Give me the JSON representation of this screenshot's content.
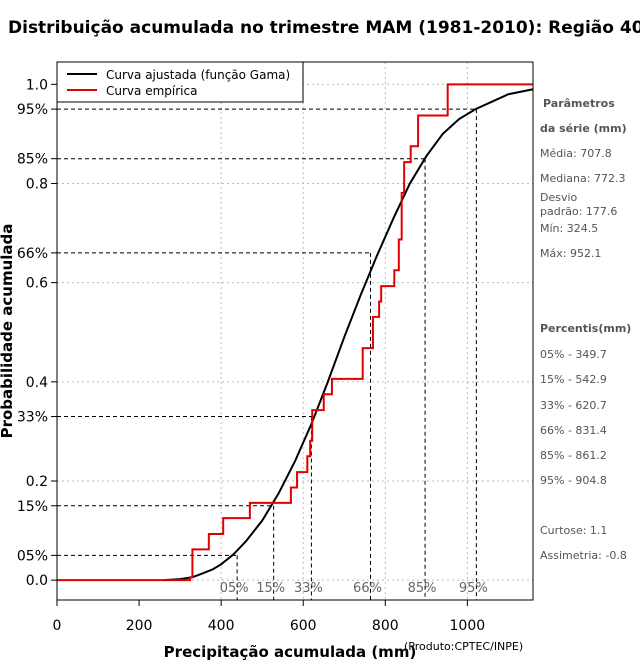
{
  "title": "Distribuição acumulada no trimestre MAM (1981-2010): Região 40",
  "credit": "(Produto:CPTEC/INPE)",
  "chart_data": {
    "type": "line",
    "xlabel": "Precipitação acumulada (mm)",
    "ylabel": "Probabilidade acumulada",
    "xlim": [
      0,
      1160
    ],
    "ylim": [
      -0.04,
      1.045
    ],
    "x_ticks": [
      "0",
      "200",
      "400",
      "600",
      "800",
      "1000"
    ],
    "x_tick_values": [
      0,
      200,
      400,
      600,
      800,
      1000
    ],
    "y_ticks": [
      {
        "value": 1.0,
        "label": "1.0"
      },
      {
        "value": 0.95,
        "label": "95%"
      },
      {
        "value": 0.85,
        "label": "85%"
      },
      {
        "value": 0.8,
        "label": "0.8"
      },
      {
        "value": 0.66,
        "label": "66%"
      },
      {
        "value": 0.6,
        "label": "0.6"
      },
      {
        "value": 0.4,
        "label": "0.4"
      },
      {
        "value": 0.33,
        "label": "33%"
      },
      {
        "value": 0.2,
        "label": "0.2"
      },
      {
        "value": 0.15,
        "label": "15%"
      },
      {
        "value": 0.05,
        "label": "05%"
      },
      {
        "value": 0.0,
        "label": "0.0"
      }
    ],
    "grid_x": [
      400,
      600,
      800,
      1000
    ],
    "grid_y": [
      0.0,
      0.2,
      0.4,
      0.6,
      0.8,
      1.0
    ],
    "legend": [
      {
        "label": "Curva ajustada (função Gama)",
        "color": "#000000"
      },
      {
        "label": "Curva empírica",
        "color": "#e00000"
      }
    ],
    "series": [
      {
        "name": "Curva ajustada (função Gama)",
        "color": "#000000",
        "x": [
          260,
          300,
          330,
          350,
          380,
          400,
          430,
          460,
          500,
          540,
          580,
          620,
          660,
          700,
          740,
          780,
          820,
          860,
          900,
          940,
          980,
          1020,
          1060,
          1100,
          1160
        ],
        "y": [
          0.0,
          0.002,
          0.006,
          0.012,
          0.022,
          0.032,
          0.052,
          0.078,
          0.12,
          0.175,
          0.24,
          0.315,
          0.4,
          0.49,
          0.575,
          0.655,
          0.73,
          0.8,
          0.855,
          0.9,
          0.93,
          0.95,
          0.965,
          0.98,
          0.99
        ]
      },
      {
        "name": "Curva empírica",
        "color": "#e00000",
        "step": true,
        "x": [
          0,
          324.5,
          330,
          370,
          405,
          470,
          570,
          585,
          610,
          617,
          622,
          650,
          670,
          745,
          770,
          785,
          790,
          822,
          833,
          840,
          846,
          862,
          880,
          952.1,
          1160
        ],
        "y": [
          0.0,
          0.006,
          0.062,
          0.093,
          0.125,
          0.156,
          0.187,
          0.218,
          0.25,
          0.281,
          0.343,
          0.375,
          0.406,
          0.468,
          0.531,
          0.562,
          0.593,
          0.625,
          0.687,
          0.781,
          0.843,
          0.875,
          0.937,
          1.0,
          1.0
        ]
      }
    ],
    "percentile_markers": [
      {
        "label": "05%",
        "p": 0.05,
        "x": 439
      },
      {
        "label": "15%",
        "p": 0.15,
        "x": 528
      },
      {
        "label": "33%",
        "p": 0.33,
        "x": 620
      },
      {
        "label": "66%",
        "p": 0.66,
        "x": 764
      },
      {
        "label": "85%",
        "p": 0.85,
        "x": 897
      },
      {
        "label": "95%",
        "p": 0.95,
        "x": 1022
      }
    ]
  },
  "side_panel": {
    "params_title_line1": "Parâmetros",
    "params_title_line2": "da série (mm)",
    "media": "Média: 707.8",
    "mediana": "Mediana: 772.3",
    "desvio_line1": "Desvio",
    "desvio_line2": "padrão: 177.6",
    "min": "Mín: 324.5",
    "max": "Máx: 952.1",
    "percentis_title": "Percentis(mm)",
    "p05": "05% - 349.7",
    "p15": "15% - 542.9",
    "p33": "33% - 620.7",
    "p66": "66% - 831.4",
    "p85": "85% - 861.2",
    "p95": "95% - 904.8",
    "curtose": "Curtose: 1.1",
    "assimetria": "Assimetria: -0.8"
  }
}
